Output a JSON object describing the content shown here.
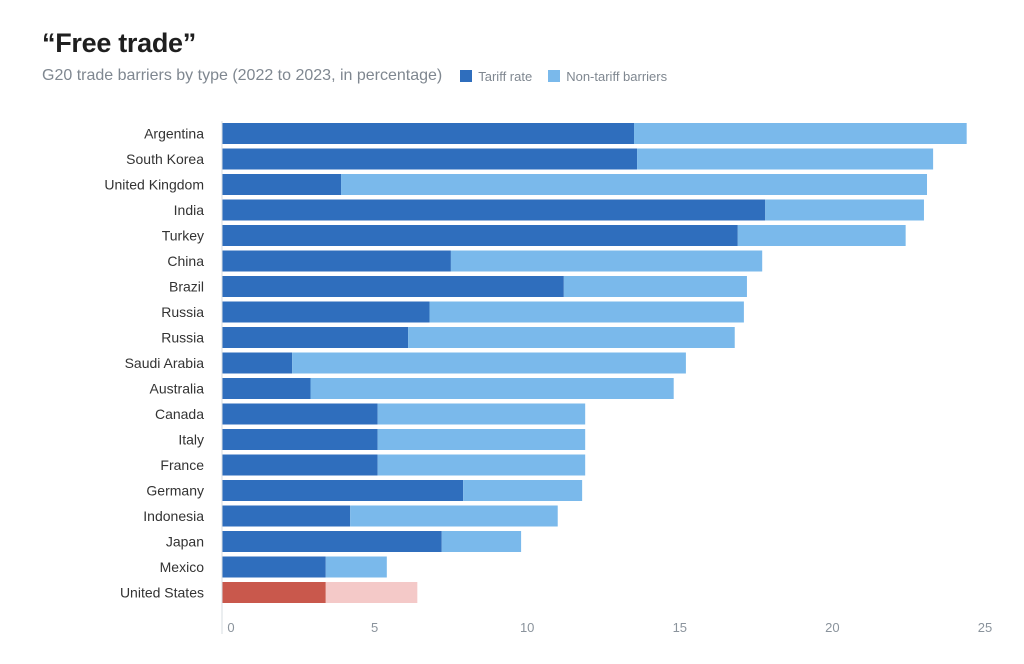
{
  "chart_data": {
    "type": "bar",
    "orientation": "horizontal",
    "stacked": true,
    "title": "“Free trade”",
    "subtitle": "G20 trade barriers by type (2022 to 2023, in percentage)",
    "categories": [
      "Argentina",
      "South Korea",
      "United Kingdom",
      "India",
      "Turkey",
      "China",
      "Brazil",
      "Russia",
      "Russia",
      "Saudi Arabia",
      "Australia",
      "Canada",
      "Italy",
      "France",
      "Germany",
      "Indonesia",
      "Japan",
      "Mexico",
      "United States"
    ],
    "series": [
      {
        "name": "Tariff rate",
        "color": "#2f6ebd",
        "values": [
          13.5,
          13.6,
          3.9,
          17.8,
          16.9,
          7.5,
          11.2,
          6.8,
          6.1,
          2.3,
          2.9,
          5.1,
          5.1,
          5.1,
          7.9,
          4.2,
          7.2,
          3.4,
          3.4
        ]
      },
      {
        "name": "Non-tariff barriers",
        "color": "#7ab9eb",
        "values": [
          10.9,
          9.7,
          19.2,
          5.2,
          5.5,
          10.2,
          6.0,
          10.3,
          10.7,
          12.9,
          11.9,
          6.8,
          6.8,
          6.8,
          3.9,
          6.8,
          2.6,
          2.0,
          3.0
        ]
      }
    ],
    "highlight": {
      "category_index": 18,
      "colors": [
        "#c9584c",
        "#f4c9c8"
      ]
    },
    "xlim": [
      0,
      25
    ],
    "xticks": [
      0,
      5,
      10,
      15,
      20,
      25
    ],
    "grid": false,
    "legend_position": "top"
  }
}
